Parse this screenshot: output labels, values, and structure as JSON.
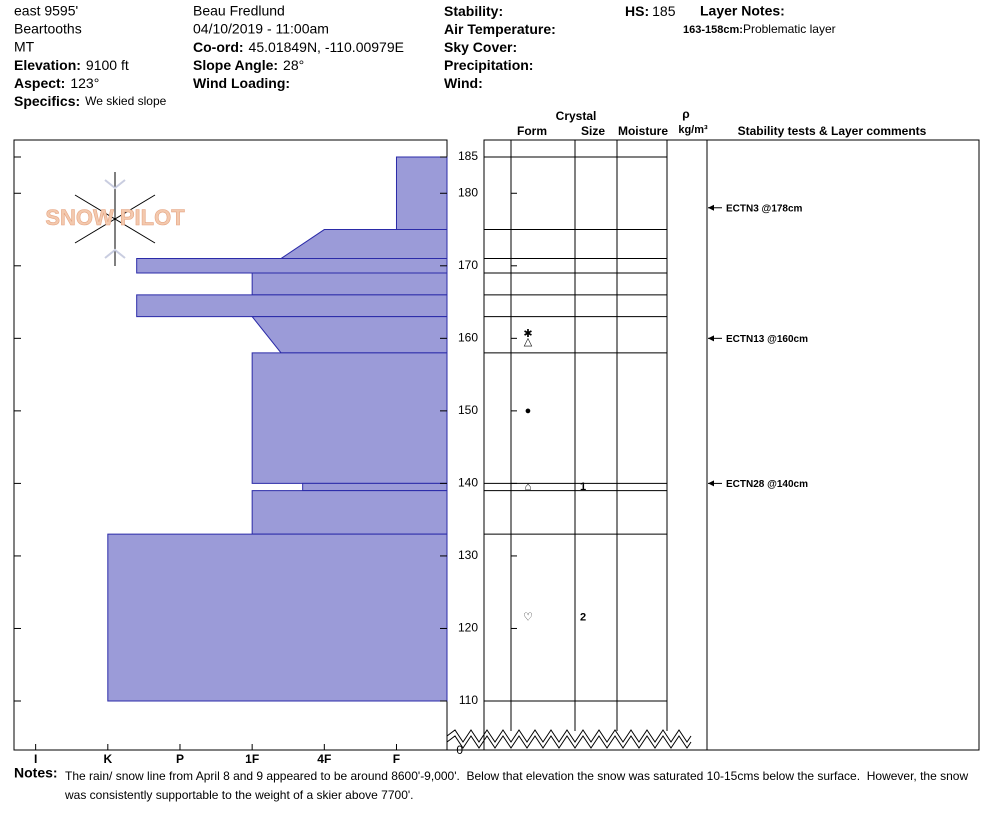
{
  "chart_data": {
    "type": "snow-profile",
    "header": {
      "col1": [
        {
          "text": "east 9595'"
        },
        {
          "text": "Beartooths"
        },
        {
          "text": "MT"
        },
        {
          "label": "Elevation:",
          "value": "9100 ft"
        },
        {
          "label": "Aspect:",
          "value": "123°"
        },
        {
          "label": "Specifics:",
          "value": "We skied slope"
        }
      ],
      "col2": [
        {
          "text": "Beau  Fredlund"
        },
        {
          "text": "04/10/2019 - 11:00am"
        },
        {
          "label": "Co-ord:",
          "value": "45.01849N, -110.00979E"
        },
        {
          "label": "Slope Angle:",
          "value": "28°"
        },
        {
          "label": "Wind Loading:"
        }
      ],
      "col3": [
        {
          "label": "Stability:"
        },
        {
          "label": "Air Temperature:"
        },
        {
          "label": "Sky Cover:"
        },
        {
          "label": "Precipitation:"
        },
        {
          "label": "Wind:"
        }
      ],
      "hs": {
        "label": "HS:",
        "value": 185
      },
      "layer_notes": {
        "label": "Layer Notes:",
        "notes": [
          {
            "label": "163-158cm:",
            "text": "Problematic layer"
          }
        ]
      }
    },
    "logo": "SNOW PILOT",
    "columns": {
      "crystal": "Crystal",
      "form": "Form",
      "size": "Size",
      "moisture": "Moisture",
      "density_symbol": "ρ",
      "density_unit": "kg/m³",
      "comments": "Stability tests & Layer comments"
    },
    "ylim": [
      110,
      185
    ],
    "yticks": [
      185,
      180,
      170,
      160,
      150,
      140,
      130,
      120,
      110
    ],
    "ybase": 0,
    "xlim": [
      0.3,
      6.3
    ],
    "xticks": [
      {
        "value": 6,
        "label": "I"
      },
      {
        "value": 5,
        "label": "K"
      },
      {
        "value": 4,
        "label": "P"
      },
      {
        "value": 3,
        "label": "1F"
      },
      {
        "value": 2,
        "label": "4F"
      },
      {
        "value": 1,
        "label": "F"
      }
    ],
    "color": "#9b9bd8",
    "layers": [
      {
        "top": 185,
        "bottom": 175,
        "hardness": 1
      },
      {
        "top": 175,
        "bottom": 171,
        "hardness": 2,
        "hardness_bottom": 2.6
      },
      {
        "top": 171,
        "bottom": 169,
        "hardness": 4.6
      },
      {
        "top": 169,
        "bottom": 166,
        "hardness": 3
      },
      {
        "top": 166,
        "bottom": 163,
        "hardness": 4.6
      },
      {
        "top": 163,
        "bottom": 158,
        "hardness": 3,
        "hardness_bottom": 2.6
      },
      {
        "top": 158,
        "bottom": 140,
        "hardness": 3
      },
      {
        "top": 140,
        "bottom": 139,
        "hardness": 2.3
      },
      {
        "top": 139,
        "bottom": 133,
        "hardness": 3
      },
      {
        "top": 133,
        "bottom": 110,
        "hardness": 5
      }
    ],
    "grains": [
      {
        "height": 160,
        "form": [
          "✱",
          "△"
        ]
      },
      {
        "height": 150,
        "form": [
          "●"
        ]
      },
      {
        "height": 139.5,
        "form": [
          "⌂"
        ],
        "size": 1
      },
      {
        "height": 121.5,
        "form": [
          "♡"
        ],
        "size": 2
      }
    ],
    "tests": [
      {
        "height": 178,
        "label": "ECTN3 @178cm"
      },
      {
        "height": 160,
        "label": "ECTN13 @160cm"
      },
      {
        "height": 140,
        "label": "ECTN28 @140cm"
      }
    ],
    "notes": {
      "label": "Notes:",
      "text": "The rain/ snow line from April 8 and 9 appeared to be around 8600'-9,000'.  Below that elevation the snow was saturated 10-15cms below the surface.  However, the snow was consistently supportable to the weight of a skier above 7700'."
    }
  }
}
